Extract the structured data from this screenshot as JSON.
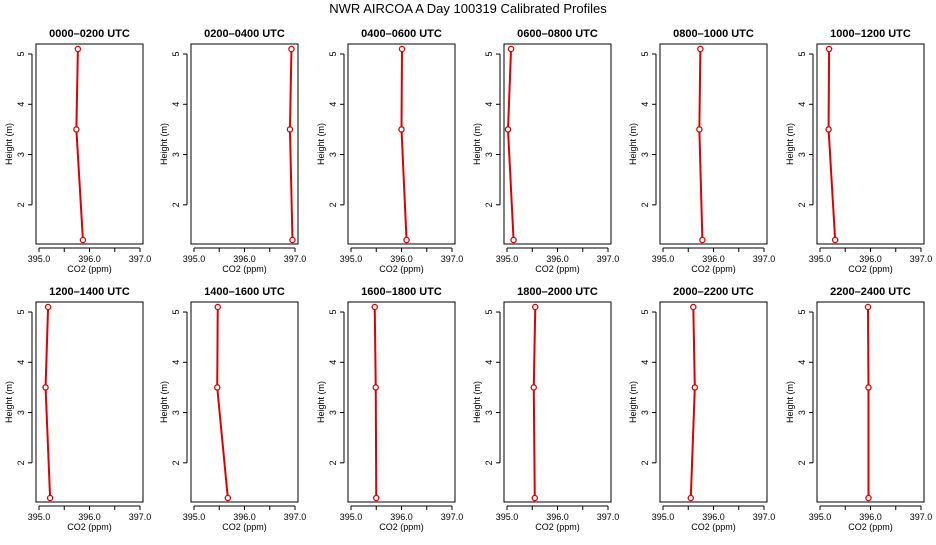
{
  "title": "NWR AIRCOA A  Day 100319  Calibrated Profiles",
  "colors": {
    "series": "#dd0000",
    "axis": "#000000"
  },
  "chart_data": [
    {
      "type": "line",
      "title": "0000–0200 UTC",
      "xlabel": "CO2 (ppm)",
      "ylabel": "Height (m)",
      "xlim": [
        395.0,
        397.0
      ],
      "ylim": [
        1.3,
        5.1
      ],
      "xticks": [
        "395.0",
        "396.0",
        "397.0"
      ],
      "yticks": [
        "2",
        "3",
        "4",
        "5"
      ],
      "x": [
        395.87,
        395.74,
        395.77
      ],
      "y": [
        1.3,
        3.5,
        5.1
      ]
    },
    {
      "type": "line",
      "title": "0200–0400 UTC",
      "xlabel": "CO2 (ppm)",
      "ylabel": "Height (m)",
      "xlim": [
        395.0,
        397.0
      ],
      "ylim": [
        1.3,
        5.1
      ],
      "xticks": [
        "395.0",
        "396.0",
        "397.0"
      ],
      "yticks": [
        "2",
        "3",
        "4",
        "5"
      ],
      "x": [
        396.95,
        396.9,
        396.93
      ],
      "y": [
        1.3,
        3.5,
        5.1
      ]
    },
    {
      "type": "line",
      "title": "0400–0600 UTC",
      "xlabel": "CO2 (ppm)",
      "ylabel": "Height (m)",
      "xlim": [
        395.0,
        397.0
      ],
      "ylim": [
        1.3,
        5.1
      ],
      "xticks": [
        "395.0",
        "396.0",
        "397.0"
      ],
      "yticks": [
        "2",
        "3",
        "4",
        "5"
      ],
      "x": [
        396.1,
        396.0,
        396.01
      ],
      "y": [
        1.3,
        3.5,
        5.1
      ]
    },
    {
      "type": "line",
      "title": "0600–0800 UTC",
      "xlabel": "CO2 (ppm)",
      "ylabel": "Height (m)",
      "xlim": [
        395.0,
        397.0
      ],
      "ylim": [
        1.3,
        5.1
      ],
      "xticks": [
        "395.0",
        "396.0",
        "397.0"
      ],
      "yticks": [
        "2",
        "3",
        "4",
        "5"
      ],
      "x": [
        395.13,
        395.02,
        395.08
      ],
      "y": [
        1.3,
        3.5,
        5.1
      ]
    },
    {
      "type": "line",
      "title": "0800–1000 UTC",
      "xlabel": "CO2 (ppm)",
      "ylabel": "Height (m)",
      "xlim": [
        395.0,
        397.0
      ],
      "ylim": [
        1.3,
        5.1
      ],
      "xticks": [
        "395.0",
        "396.0",
        "397.0"
      ],
      "yticks": [
        "2",
        "3",
        "4",
        "5"
      ],
      "x": [
        395.78,
        395.72,
        395.74
      ],
      "y": [
        1.3,
        3.5,
        5.1
      ]
    },
    {
      "type": "line",
      "title": "1000–1200 UTC",
      "xlabel": "CO2 (ppm)",
      "ylabel": "Height (m)",
      "xlim": [
        395.0,
        397.0
      ],
      "ylim": [
        1.3,
        5.1
      ],
      "xticks": [
        "395.0",
        "396.0",
        "397.0"
      ],
      "yticks": [
        "2",
        "3",
        "4",
        "5"
      ],
      "x": [
        395.3,
        395.17,
        395.18
      ],
      "y": [
        1.3,
        3.5,
        5.1
      ]
    },
    {
      "type": "line",
      "title": "1200–1400 UTC",
      "xlabel": "CO2 (ppm)",
      "ylabel": "Height (m)",
      "xlim": [
        395.0,
        397.0
      ],
      "ylim": [
        1.3,
        5.1
      ],
      "xticks": [
        "395.0",
        "396.0",
        "397.0"
      ],
      "yticks": [
        "2",
        "3",
        "4",
        "5"
      ],
      "x": [
        395.22,
        395.13,
        395.18
      ],
      "y": [
        1.3,
        3.5,
        5.1
      ]
    },
    {
      "type": "line",
      "title": "1400–1600 UTC",
      "xlabel": "CO2 (ppm)",
      "ylabel": "Height (m)",
      "xlim": [
        395.0,
        397.0
      ],
      "ylim": [
        1.3,
        5.1
      ],
      "xticks": [
        "395.0",
        "396.0",
        "397.0"
      ],
      "yticks": [
        "2",
        "3",
        "4",
        "5"
      ],
      "x": [
        395.67,
        395.46,
        395.47
      ],
      "y": [
        1.3,
        3.5,
        5.1
      ]
    },
    {
      "type": "line",
      "title": "1600–1800 UTC",
      "xlabel": "CO2 (ppm)",
      "ylabel": "Height (m)",
      "xlim": [
        395.0,
        397.0
      ],
      "ylim": [
        1.3,
        5.1
      ],
      "xticks": [
        "395.0",
        "396.0",
        "397.0"
      ],
      "yticks": [
        "2",
        "3",
        "4",
        "5"
      ],
      "x": [
        395.5,
        395.49,
        395.47
      ],
      "y": [
        1.3,
        3.5,
        5.1
      ]
    },
    {
      "type": "line",
      "title": "1800–2000 UTC",
      "xlabel": "CO2 (ppm)",
      "ylabel": "Height (m)",
      "xlim": [
        395.0,
        397.0
      ],
      "ylim": [
        1.3,
        5.1
      ],
      "xticks": [
        "395.0",
        "396.0",
        "397.0"
      ],
      "yticks": [
        "2",
        "3",
        "4",
        "5"
      ],
      "x": [
        395.55,
        395.53,
        395.56
      ],
      "y": [
        1.3,
        3.5,
        5.1
      ]
    },
    {
      "type": "line",
      "title": "2000–2200 UTC",
      "xlabel": "CO2 (ppm)",
      "ylabel": "Height (m)",
      "xlim": [
        395.0,
        397.0
      ],
      "ylim": [
        1.3,
        5.1
      ],
      "xticks": [
        "395.0",
        "396.0",
        "397.0"
      ],
      "yticks": [
        "2",
        "3",
        "4",
        "5"
      ],
      "x": [
        395.55,
        395.63,
        395.6
      ],
      "y": [
        1.3,
        3.5,
        5.1
      ]
    },
    {
      "type": "line",
      "title": "2200–2400 UTC",
      "xlabel": "CO2 (ppm)",
      "ylabel": "Height (m)",
      "xlim": [
        395.0,
        397.0
      ],
      "ylim": [
        1.3,
        5.1
      ],
      "xticks": [
        "395.0",
        "396.0",
        "397.0"
      ],
      "yticks": [
        "2",
        "3",
        "4",
        "5"
      ],
      "x": [
        395.96,
        395.96,
        395.95
      ],
      "y": [
        1.3,
        3.5,
        5.1
      ]
    }
  ]
}
